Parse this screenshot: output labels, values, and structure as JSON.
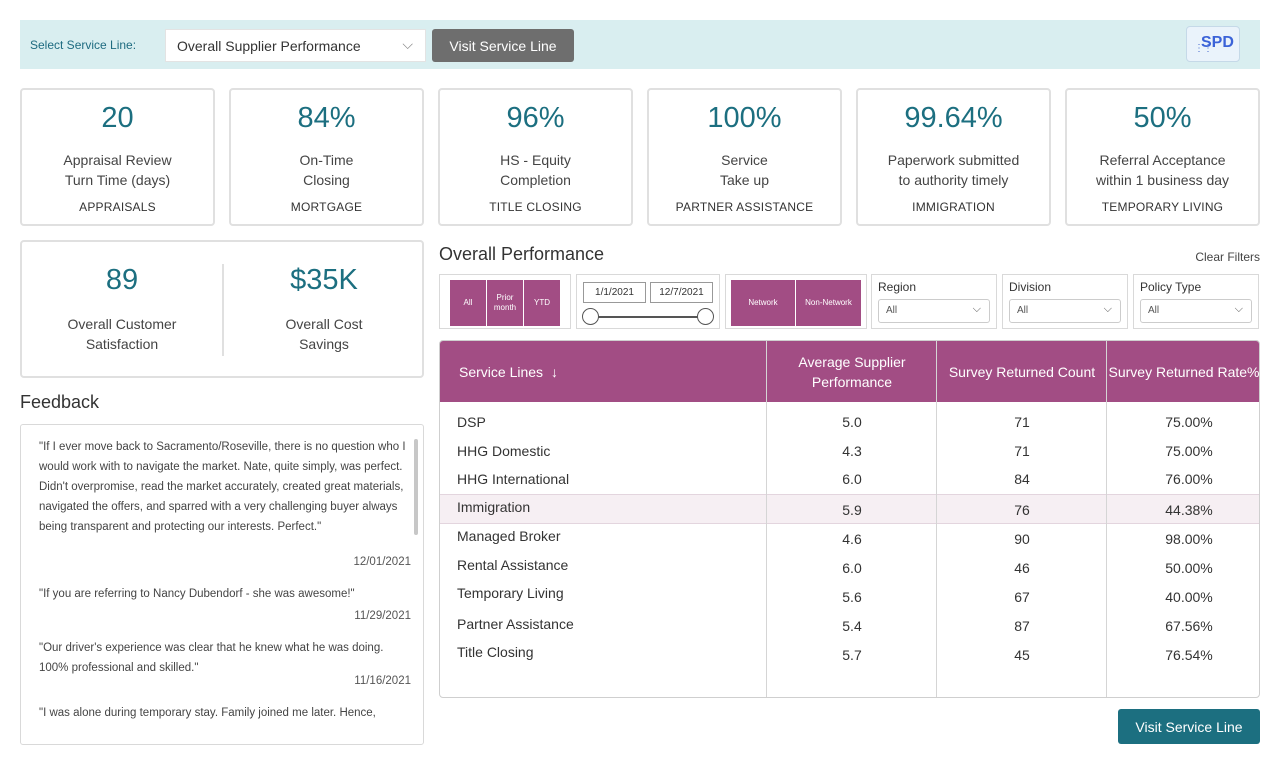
{
  "topbar": {
    "select_label": "Select Service Line:",
    "selected_service_line": "Overall Supplier Performance",
    "visit_button": "Visit Service Line",
    "logo_text": "SPD"
  },
  "kpis": [
    {
      "value": "20",
      "label1": "Appraisal Review",
      "label2": "Turn Time (days)",
      "category": "APPRAISALS"
    },
    {
      "value": "84%",
      "label1": "On-Time",
      "label2": "Closing",
      "category": "MORTGAGE"
    },
    {
      "value": "96%",
      "label1": "HS - Equity",
      "label2": "Completion",
      "category": "TITLE CLOSING"
    },
    {
      "value": "100%",
      "label1": "Service",
      "label2": "Take up",
      "category": "PARTNER ASSISTANCE"
    },
    {
      "value": "99.64%",
      "label1": "Paperwork submitted",
      "label2": "to authority timely",
      "category": "IMMIGRATION"
    },
    {
      "value": "50%",
      "label1": "Referral Acceptance",
      "label2": "within 1 business day",
      "category": "TEMPORARY LIVING"
    }
  ],
  "combo": {
    "csat_value": "89",
    "csat_label1": "Overall Customer",
    "csat_label2": "Satisfaction",
    "savings_value": "$35K",
    "savings_label1": "Overall Cost",
    "savings_label2": "Savings"
  },
  "feedback": {
    "title": "Feedback",
    "items": [
      {
        "text": "\"If I ever move back to Sacramento/Roseville, there is no question who I would work with to navigate the market.  Nate, quite simply, was perfect.  Didn't overpromise, read the market accurately, created great materials, navigated the offers, and sparred with a very challenging buyer always being transparent and protecting our interests.  Perfect.\"",
        "date": "12/01/2021"
      },
      {
        "text": "\"If you are referring to Nancy Dubendorf - she was awesome!\"",
        "date": "11/29/2021"
      },
      {
        "text": "\"Our driver's experience was clear that he knew what he was doing. 100% professional and skilled.\"",
        "date": "11/16/2021"
      },
      {
        "text": "\"I was alone during temporary stay. Family joined me later. Hence,",
        "date": ""
      }
    ]
  },
  "performance": {
    "title": "Overall Performance",
    "clear_filters": "Clear Filters",
    "period_buttons": [
      "All",
      "Prior month",
      "YTD"
    ],
    "date_from": "1/1/2021",
    "date_to": "12/7/2021",
    "network_buttons": [
      "Network",
      "Non-Network"
    ],
    "filters": [
      {
        "label": "Region",
        "value": "All"
      },
      {
        "label": "Division",
        "value": "All"
      },
      {
        "label": "Policy Type",
        "value": "All"
      }
    ],
    "columns": [
      "Service Lines",
      "Average Supplier Performance",
      "Survey Returned Count",
      "Survey Returned Rate%"
    ],
    "rows": [
      {
        "name": "DSP",
        "avg": "5.0",
        "count": "71",
        "rate": "75.00%"
      },
      {
        "name": "HHG Domestic",
        "avg": "4.3",
        "count": "71",
        "rate": "75.00%"
      },
      {
        "name": "HHG International",
        "avg": "6.0",
        "count": "84",
        "rate": "76.00%"
      },
      {
        "name": "Immigration",
        "avg": "5.9",
        "count": "76",
        "rate": "44.38%"
      },
      {
        "name": "Managed Broker",
        "avg": "4.6",
        "count": "90",
        "rate": "98.00%"
      },
      {
        "name": "Rental Assistance",
        "avg": "6.0",
        "count": "46",
        "rate": "50.00%"
      },
      {
        "name": "Temporary Living",
        "avg": "5.6",
        "count": "67",
        "rate": "40.00%"
      },
      {
        "name": "Partner Assistance",
        "avg": "5.4",
        "count": "87",
        "rate": "67.56%"
      },
      {
        "name": "Title Closing",
        "avg": "5.7",
        "count": "45",
        "rate": "76.54%"
      }
    ],
    "visit_button": "Visit Service Line"
  }
}
